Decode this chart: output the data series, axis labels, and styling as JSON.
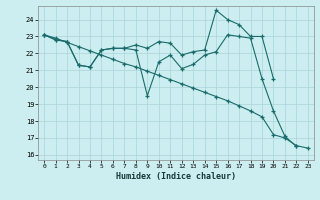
{
  "xlabel": "Humidex (Indice chaleur)",
  "bg_color": "#cceef0",
  "grid_color": "#aad4d8",
  "line_color": "#1a6b6b",
  "xlim": [
    -0.5,
    23.5
  ],
  "ylim": [
    15.7,
    24.8
  ],
  "xticks": [
    0,
    1,
    2,
    3,
    4,
    5,
    6,
    7,
    8,
    9,
    10,
    11,
    12,
    13,
    14,
    15,
    16,
    17,
    18,
    19,
    20,
    21,
    22,
    23
  ],
  "yticks": [
    16,
    17,
    18,
    19,
    20,
    21,
    22,
    23,
    24
  ],
  "line1_x": [
    0,
    1,
    2,
    3,
    4,
    5,
    6,
    7,
    8,
    9,
    10,
    11,
    12,
    13,
    14,
    15,
    16,
    17,
    18,
    19,
    20,
    21,
    22,
    23
  ],
  "line1_y": [
    23.1,
    22.9,
    22.65,
    22.4,
    22.15,
    21.9,
    21.65,
    21.4,
    21.2,
    20.95,
    20.7,
    20.45,
    20.2,
    19.95,
    19.7,
    19.45,
    19.2,
    18.9,
    18.6,
    18.25,
    17.2,
    17.0,
    16.55,
    16.4
  ],
  "line2_x": [
    0,
    1,
    2,
    3,
    4,
    5,
    6,
    7,
    8,
    9,
    10,
    11,
    12,
    13,
    14,
    15,
    16,
    17,
    18,
    19,
    20,
    21,
    22
  ],
  "line2_y": [
    23.1,
    22.8,
    22.7,
    21.3,
    21.2,
    22.2,
    22.3,
    22.3,
    22.2,
    19.5,
    21.5,
    21.9,
    21.1,
    21.35,
    21.9,
    22.1,
    23.1,
    23.0,
    22.9,
    20.5,
    18.6,
    17.1,
    16.5
  ],
  "line3_x": [
    0,
    1,
    2,
    3,
    4,
    5,
    6,
    7,
    8,
    9,
    10,
    11,
    12,
    13,
    14,
    15,
    16,
    17,
    18,
    19,
    20
  ],
  "line3_y": [
    23.1,
    22.8,
    22.7,
    21.3,
    21.2,
    22.2,
    22.3,
    22.3,
    22.5,
    22.3,
    22.7,
    22.6,
    21.9,
    22.1,
    22.2,
    24.55,
    24.0,
    23.7,
    23.0,
    23.0,
    20.5
  ]
}
